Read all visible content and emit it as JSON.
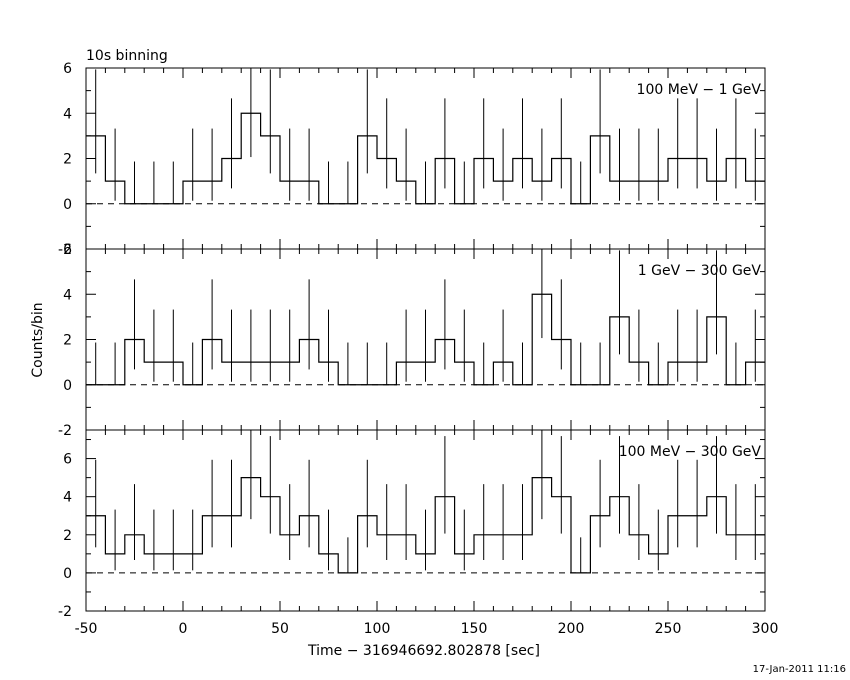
{
  "chart_data": {
    "type": "line",
    "title": "10s binning",
    "xlabel": "Time − 316946692.802878 [sec]",
    "ylabel": "Counts/bin",
    "xlim": [
      -50,
      300
    ],
    "x_ticks": [
      -50,
      0,
      50,
      100,
      150,
      200,
      250,
      300
    ],
    "footer": "17-Jan-2011 11:16",
    "bin_width": 10,
    "x": [
      -45,
      -35,
      -25,
      -15,
      -5,
      5,
      15,
      25,
      35,
      45,
      55,
      65,
      75,
      85,
      95,
      105,
      115,
      125,
      135,
      145,
      155,
      165,
      175,
      185,
      195,
      205,
      215,
      225,
      235,
      245,
      255,
      265,
      275,
      285,
      295
    ],
    "panels": [
      {
        "label": "100 MeV − 1 GeV",
        "ylim": [
          -2,
          6
        ],
        "y_ticks": [
          -2,
          0,
          2,
          4,
          6
        ],
        "values": [
          3,
          1,
          0,
          0,
          0,
          1,
          1,
          2,
          4,
          3,
          1,
          1,
          0,
          0,
          3,
          2,
          1,
          0,
          2,
          0,
          2,
          1,
          2,
          1,
          2,
          0,
          3,
          1,
          1,
          1,
          2,
          2,
          1,
          2,
          1
        ]
      },
      {
        "label": "1 GeV − 300 GeV",
        "ylim": [
          -2,
          6
        ],
        "y_ticks": [
          -2,
          0,
          2,
          4,
          6
        ],
        "values": [
          0,
          0,
          2,
          1,
          1,
          0,
          2,
          1,
          1,
          1,
          1,
          2,
          1,
          0,
          0,
          0,
          1,
          1,
          2,
          1,
          0,
          1,
          0,
          4,
          2,
          0,
          0,
          3,
          1,
          0,
          1,
          1,
          3,
          0,
          1
        ]
      },
      {
        "label": "100 MeV − 300 GeV",
        "ylim": [
          -2,
          7.5
        ],
        "y_ticks": [
          -2,
          0,
          2,
          4,
          6
        ],
        "values": [
          3,
          1,
          2,
          1,
          1,
          1,
          3,
          3,
          5,
          4,
          2,
          3,
          1,
          0,
          3,
          2,
          2,
          1,
          4,
          1,
          2,
          2,
          2,
          5,
          4,
          0,
          3,
          4,
          2,
          1,
          3,
          3,
          4,
          2,
          2
        ]
      }
    ]
  }
}
